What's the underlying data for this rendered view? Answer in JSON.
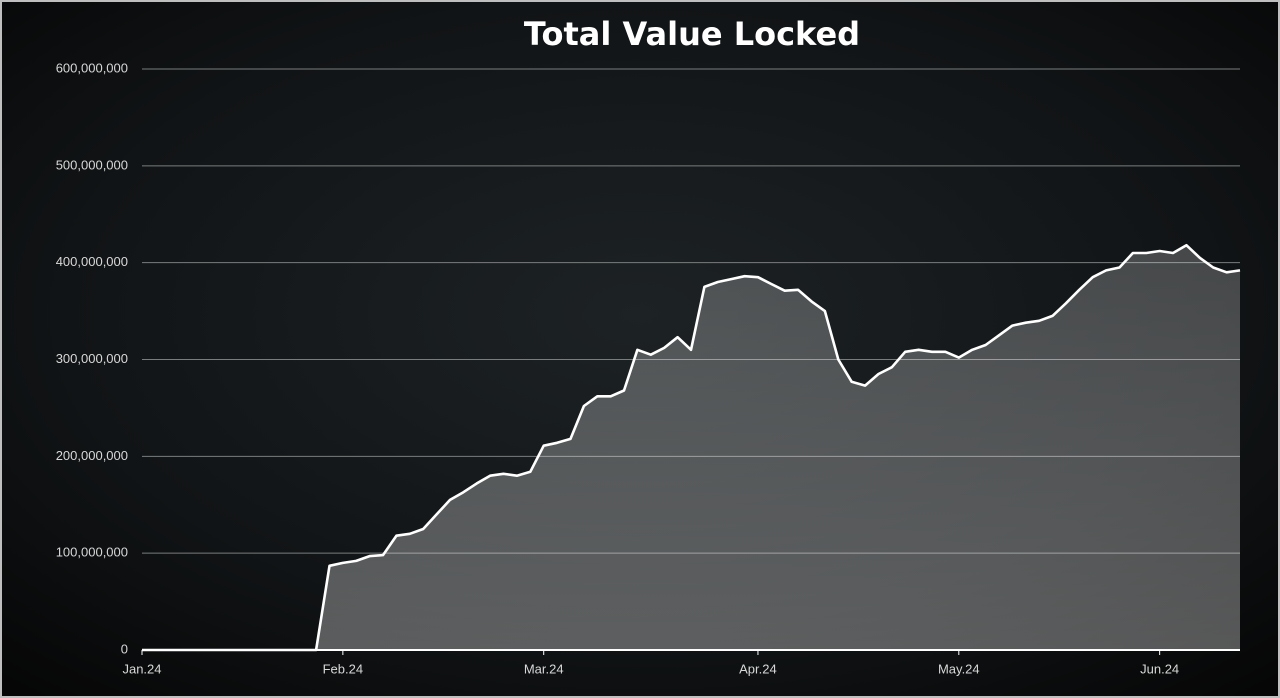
{
  "chart_data": {
    "type": "area",
    "title": "Total Value Locked",
    "categories": [
      "Jan.24",
      null,
      null,
      null,
      null,
      null,
      null,
      null,
      null,
      null,
      null,
      null,
      null,
      null,
      null,
      "Feb.24",
      null,
      null,
      null,
      null,
      null,
      null,
      null,
      null,
      null,
      null,
      null,
      null,
      null,
      null,
      "Mar.24",
      null,
      null,
      null,
      null,
      null,
      null,
      null,
      null,
      null,
      null,
      null,
      null,
      null,
      null,
      null,
      "Apr.24",
      null,
      null,
      null,
      null,
      null,
      null,
      null,
      null,
      null,
      null,
      null,
      null,
      null,
      null,
      "May.24",
      null,
      null,
      null,
      null,
      null,
      null,
      null,
      null,
      null,
      null,
      null,
      null,
      null,
      null,
      "Jun.24",
      null,
      null,
      null,
      null,
      null,
      null
    ],
    "values": [
      0,
      0,
      0,
      0,
      0,
      0,
      0,
      0,
      0,
      0,
      0,
      0,
      0,
      0,
      87000000,
      90000000,
      92000000,
      97000000,
      98000000,
      118000000,
      120000000,
      125000000,
      140000000,
      155000000,
      163000000,
      172000000,
      180000000,
      182000000,
      180000000,
      184000000,
      211000000,
      214000000,
      218000000,
      252000000,
      262000000,
      262000000,
      268000000,
      310000000,
      305000000,
      312000000,
      323000000,
      310000000,
      375000000,
      380000000,
      383000000,
      386000000,
      385000000,
      378000000,
      371000000,
      372000000,
      360000000,
      350000000,
      300000000,
      277000000,
      273000000,
      285000000,
      292000000,
      308000000,
      310000000,
      308000000,
      308000000,
      302000000,
      310000000,
      315000000,
      325000000,
      335000000,
      338000000,
      340000000,
      345000000,
      358000000,
      372000000,
      385000000,
      392000000,
      395000000,
      410000000,
      410000000,
      412000000,
      410000000,
      418000000,
      405000000,
      395000000,
      390000000,
      392000000
    ],
    "color": "#ffffff",
    "ylim": [
      0,
      600000000
    ],
    "yticks": [
      0,
      {
        "value": 100000000,
        "label": "100,000,000"
      },
      {
        "value": 200000000,
        "label": "200,000,000"
      },
      {
        "value": 300000000,
        "label": "300,000,000"
      },
      {
        "value": 400000000,
        "label": "400,000,000"
      },
      {
        "value": 500000000,
        "label": "500,000,000"
      },
      {
        "value": 600000000,
        "label": "600,000,000"
      }
    ],
    "grid": true
  }
}
